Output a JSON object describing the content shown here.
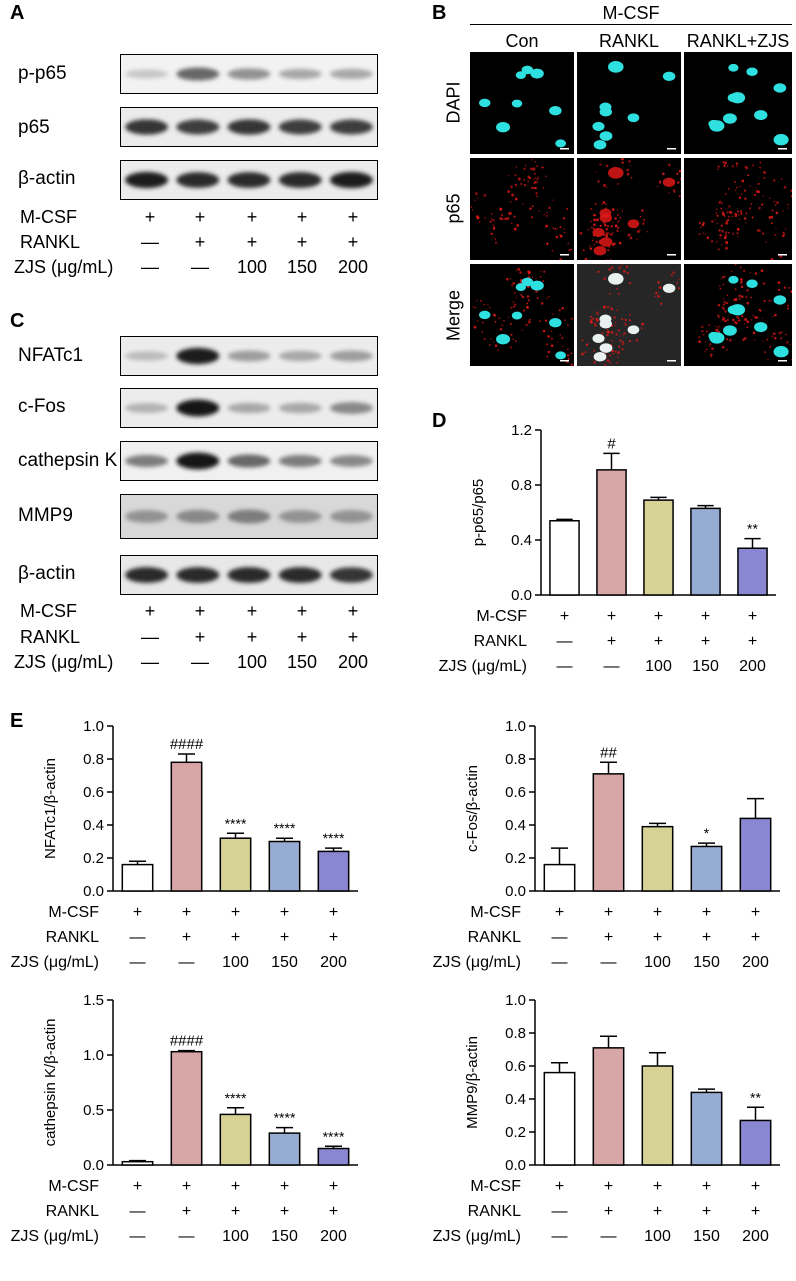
{
  "panel_letters": {
    "a": "A",
    "b": "B",
    "c": "C",
    "d": "D",
    "e": "E"
  },
  "conditions": {
    "labels": {
      "mcsf": "M-CSF",
      "rankl": "RANKL",
      "zjs": "ZJS (μg/mL)"
    },
    "mcsf": [
      "+",
      "+",
      "+",
      "+",
      "+"
    ],
    "rankl": [
      "—",
      "+",
      "+",
      "+",
      "+"
    ],
    "zjs": [
      "—",
      "—",
      "100",
      "150",
      "200"
    ]
  },
  "panel_a": {
    "bands": [
      "p-p65",
      "p65",
      "β-actin"
    ]
  },
  "panel_b": {
    "header": "M-CSF",
    "columns": [
      "Con",
      "RANKL",
      "RANKL+ZJS"
    ],
    "rows": [
      "DAPI",
      "p65",
      "Merge"
    ],
    "colors": {
      "dapi": "#2fe0e0",
      "p65": "#e01818",
      "merge_nucleus": "#e8f0f0"
    }
  },
  "panel_c": {
    "bands": [
      "NFATc1",
      "c-Fos",
      "cathepsin K",
      "MMP9",
      "β-actin"
    ]
  },
  "bar_colors": [
    "#ffffff",
    "#d9a6a8",
    "#d6d295",
    "#96acd3",
    "#8a87d2"
  ],
  "chart_data": [
    {
      "type": "bar",
      "panel": "D",
      "ylabel": "p-p65/p65",
      "ylim": [
        0,
        1.2
      ],
      "yticks": [
        "0.0",
        "0.4",
        "0.8",
        "1.2"
      ],
      "yticks_num": [
        0,
        0.4,
        0.8,
        1.2
      ],
      "values": [
        0.54,
        0.91,
        0.69,
        0.63,
        0.34
      ],
      "errors": [
        0.01,
        0.12,
        0.02,
        0.02,
        0.07
      ],
      "annotations": [
        "",
        "#",
        "",
        "",
        "**"
      ]
    },
    {
      "type": "bar",
      "panel": "E1",
      "ylabel": "NFATc1/β-actin",
      "ylim": [
        0,
        1.0
      ],
      "yticks": [
        "0.0",
        "0.2",
        "0.4",
        "0.6",
        "0.8",
        "1.0"
      ],
      "yticks_num": [
        0,
        0.2,
        0.4,
        0.6,
        0.8,
        1.0
      ],
      "values": [
        0.16,
        0.78,
        0.32,
        0.3,
        0.24
      ],
      "errors": [
        0.02,
        0.05,
        0.03,
        0.02,
        0.02
      ],
      "annotations": [
        "",
        "####",
        "****",
        "****",
        "****"
      ]
    },
    {
      "type": "bar",
      "panel": "E2",
      "ylabel": "c-Fos/β-actin",
      "ylim": [
        0,
        1.0
      ],
      "yticks": [
        "0.0",
        "0.2",
        "0.4",
        "0.6",
        "0.8",
        "1.0"
      ],
      "yticks_num": [
        0,
        0.2,
        0.4,
        0.6,
        0.8,
        1.0
      ],
      "values": [
        0.16,
        0.71,
        0.39,
        0.27,
        0.44
      ],
      "errors": [
        0.1,
        0.07,
        0.02,
        0.02,
        0.12
      ],
      "annotations": [
        "",
        "##",
        "",
        "*",
        ""
      ]
    },
    {
      "type": "bar",
      "panel": "E3",
      "ylabel": "cathepsin K/β-actin",
      "ylim": [
        0,
        1.5
      ],
      "yticks": [
        "0.0",
        "0.5",
        "1.0",
        "1.5"
      ],
      "yticks_num": [
        0,
        0.5,
        1.0,
        1.5
      ],
      "values": [
        0.03,
        1.03,
        0.46,
        0.29,
        0.15
      ],
      "errors": [
        0.01,
        0.01,
        0.06,
        0.05,
        0.02
      ],
      "annotations": [
        "",
        "####",
        "****",
        "****",
        "****"
      ]
    },
    {
      "type": "bar",
      "panel": "E4",
      "ylabel": "MMP9/β-actin",
      "ylim": [
        0,
        1.0
      ],
      "yticks": [
        "0.0",
        "0.2",
        "0.4",
        "0.6",
        "0.8",
        "1.0"
      ],
      "yticks_num": [
        0,
        0.2,
        0.4,
        0.6,
        0.8,
        1.0
      ],
      "values": [
        0.56,
        0.71,
        0.6,
        0.44,
        0.27
      ],
      "errors": [
        0.06,
        0.07,
        0.08,
        0.02,
        0.08
      ],
      "annotations": [
        "",
        "",
        "",
        "",
        "**"
      ]
    }
  ]
}
